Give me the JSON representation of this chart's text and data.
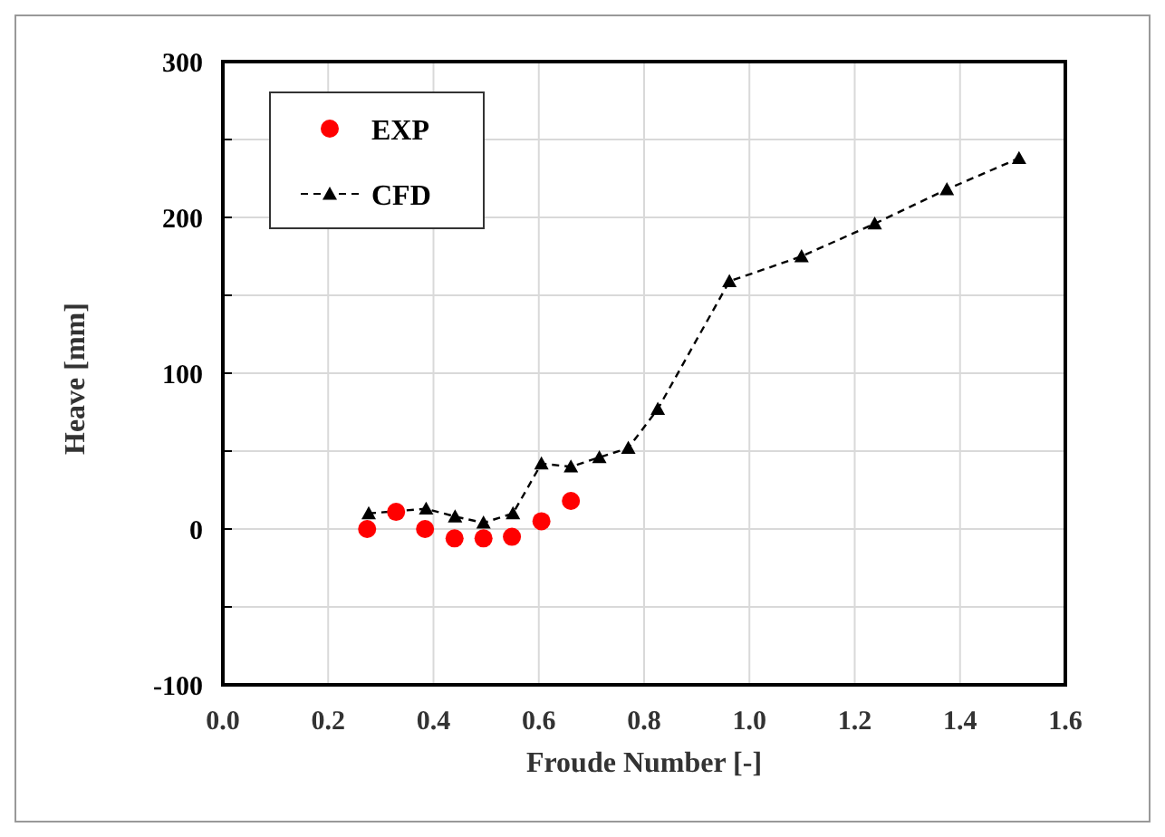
{
  "chart_data": {
    "type": "line",
    "xlabel": "Froude Number [-]",
    "ylabel": "Heave [mm]",
    "xlim": [
      0,
      1.6
    ],
    "xticks": [
      {
        "value": 0,
        "label": "0.0"
      },
      0.2,
      0.4,
      0.6,
      0.8,
      {
        "value": 1,
        "label": "1.0"
      },
      1.2,
      1.4,
      1.6
    ],
    "ylim": [
      -100,
      300
    ],
    "yticks": [
      -100,
      {
        "value": -50,
        "label": null
      },
      0,
      {
        "value": 50,
        "label": null
      },
      100,
      {
        "value": 150,
        "label": null
      },
      200,
      {
        "value": 250,
        "label": null
      },
      300
    ],
    "grid": true,
    "legend": "top left",
    "series": [
      {
        "name": "EXP",
        "type": "scatter",
        "color": "#ff0000",
        "marker": "circle",
        "x": [
          0.274,
          0.329,
          0.384,
          0.44,
          0.495,
          0.549,
          0.605,
          0.661
        ],
        "values": [
          0,
          11,
          0,
          -6,
          -6,
          -5,
          5,
          18
        ]
      },
      {
        "name": "CFD",
        "color": "#000000",
        "marker": "triangle",
        "line_style": "dashed",
        "x": [
          0.277,
          0.386,
          0.441,
          0.495,
          0.551,
          0.605,
          0.661,
          0.715,
          0.77,
          0.826,
          0.962,
          1.099,
          1.238,
          1.375,
          1.512
        ],
        "values": [
          10,
          13,
          8,
          4,
          10,
          42,
          40,
          46,
          52,
          77,
          159,
          175,
          196,
          218,
          238
        ]
      }
    ]
  }
}
